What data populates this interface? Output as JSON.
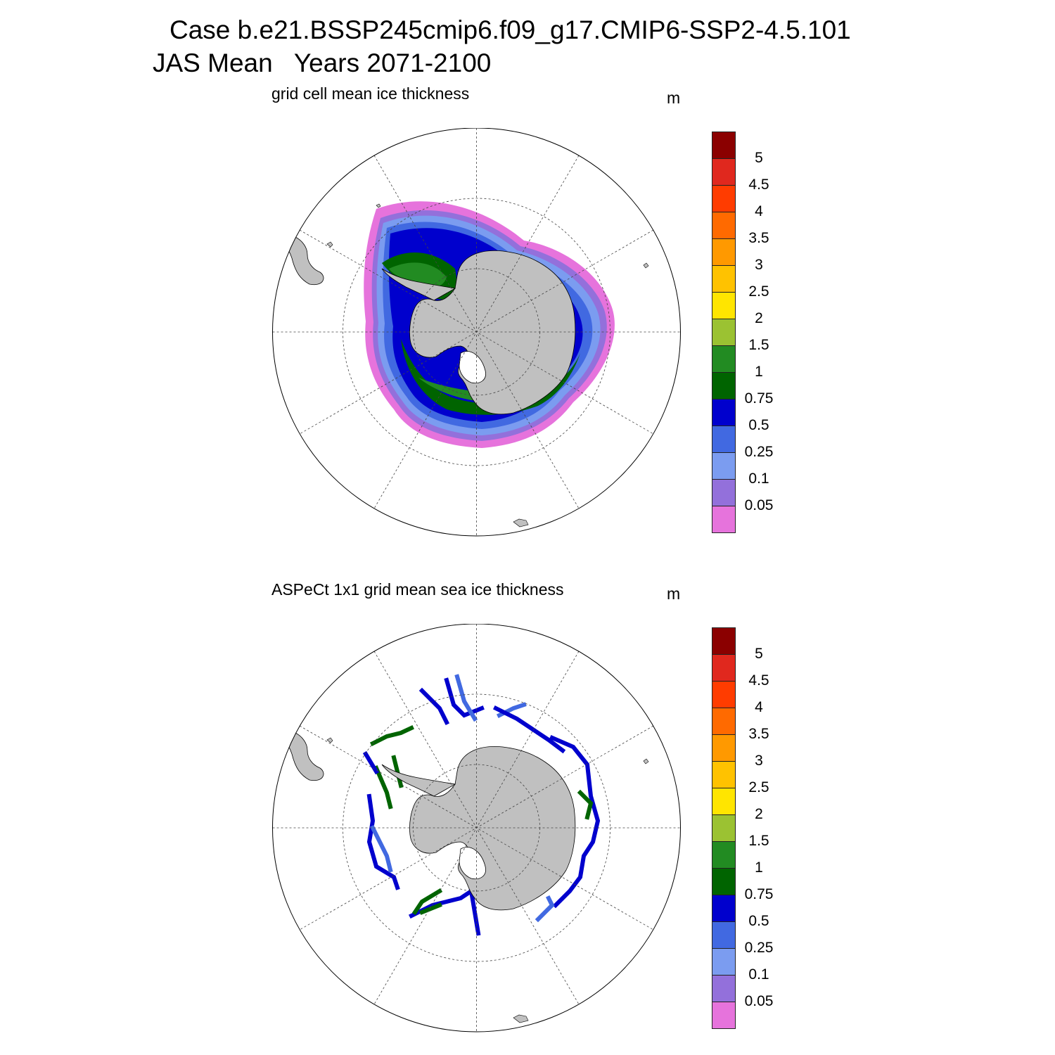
{
  "title_line1": "Case b.e21.BSSP245cmip6.f09_g17.CMIP6-SSP2-4.5.101",
  "title_line2": "JAS Mean   Years 2071-2100",
  "panels": [
    {
      "subtitle": "grid cell mean ice thickness",
      "units": "m"
    },
    {
      "subtitle": "ASPeCt 1x1 grid mean sea ice thickness",
      "units": "m"
    }
  ],
  "colorbar": {
    "labels": [
      "5",
      "4.5",
      "4",
      "3.5",
      "3",
      "2.5",
      "2",
      "1.5",
      "1",
      "0.75",
      "0.5",
      "0.25",
      "0.1",
      "0.05"
    ],
    "colors": [
      "#8b0000",
      "#e0281e",
      "#ff3c00",
      "#ff6a00",
      "#ff9900",
      "#ffc200",
      "#ffe500",
      "#9bc232",
      "#228b22",
      "#006400",
      "#0000cd",
      "#4169e1",
      "#7b9cf0",
      "#9370db",
      "#e673dc"
    ]
  },
  "map": {
    "land_color": "#c0c0c0",
    "projection": "south polar stereographic"
  }
}
